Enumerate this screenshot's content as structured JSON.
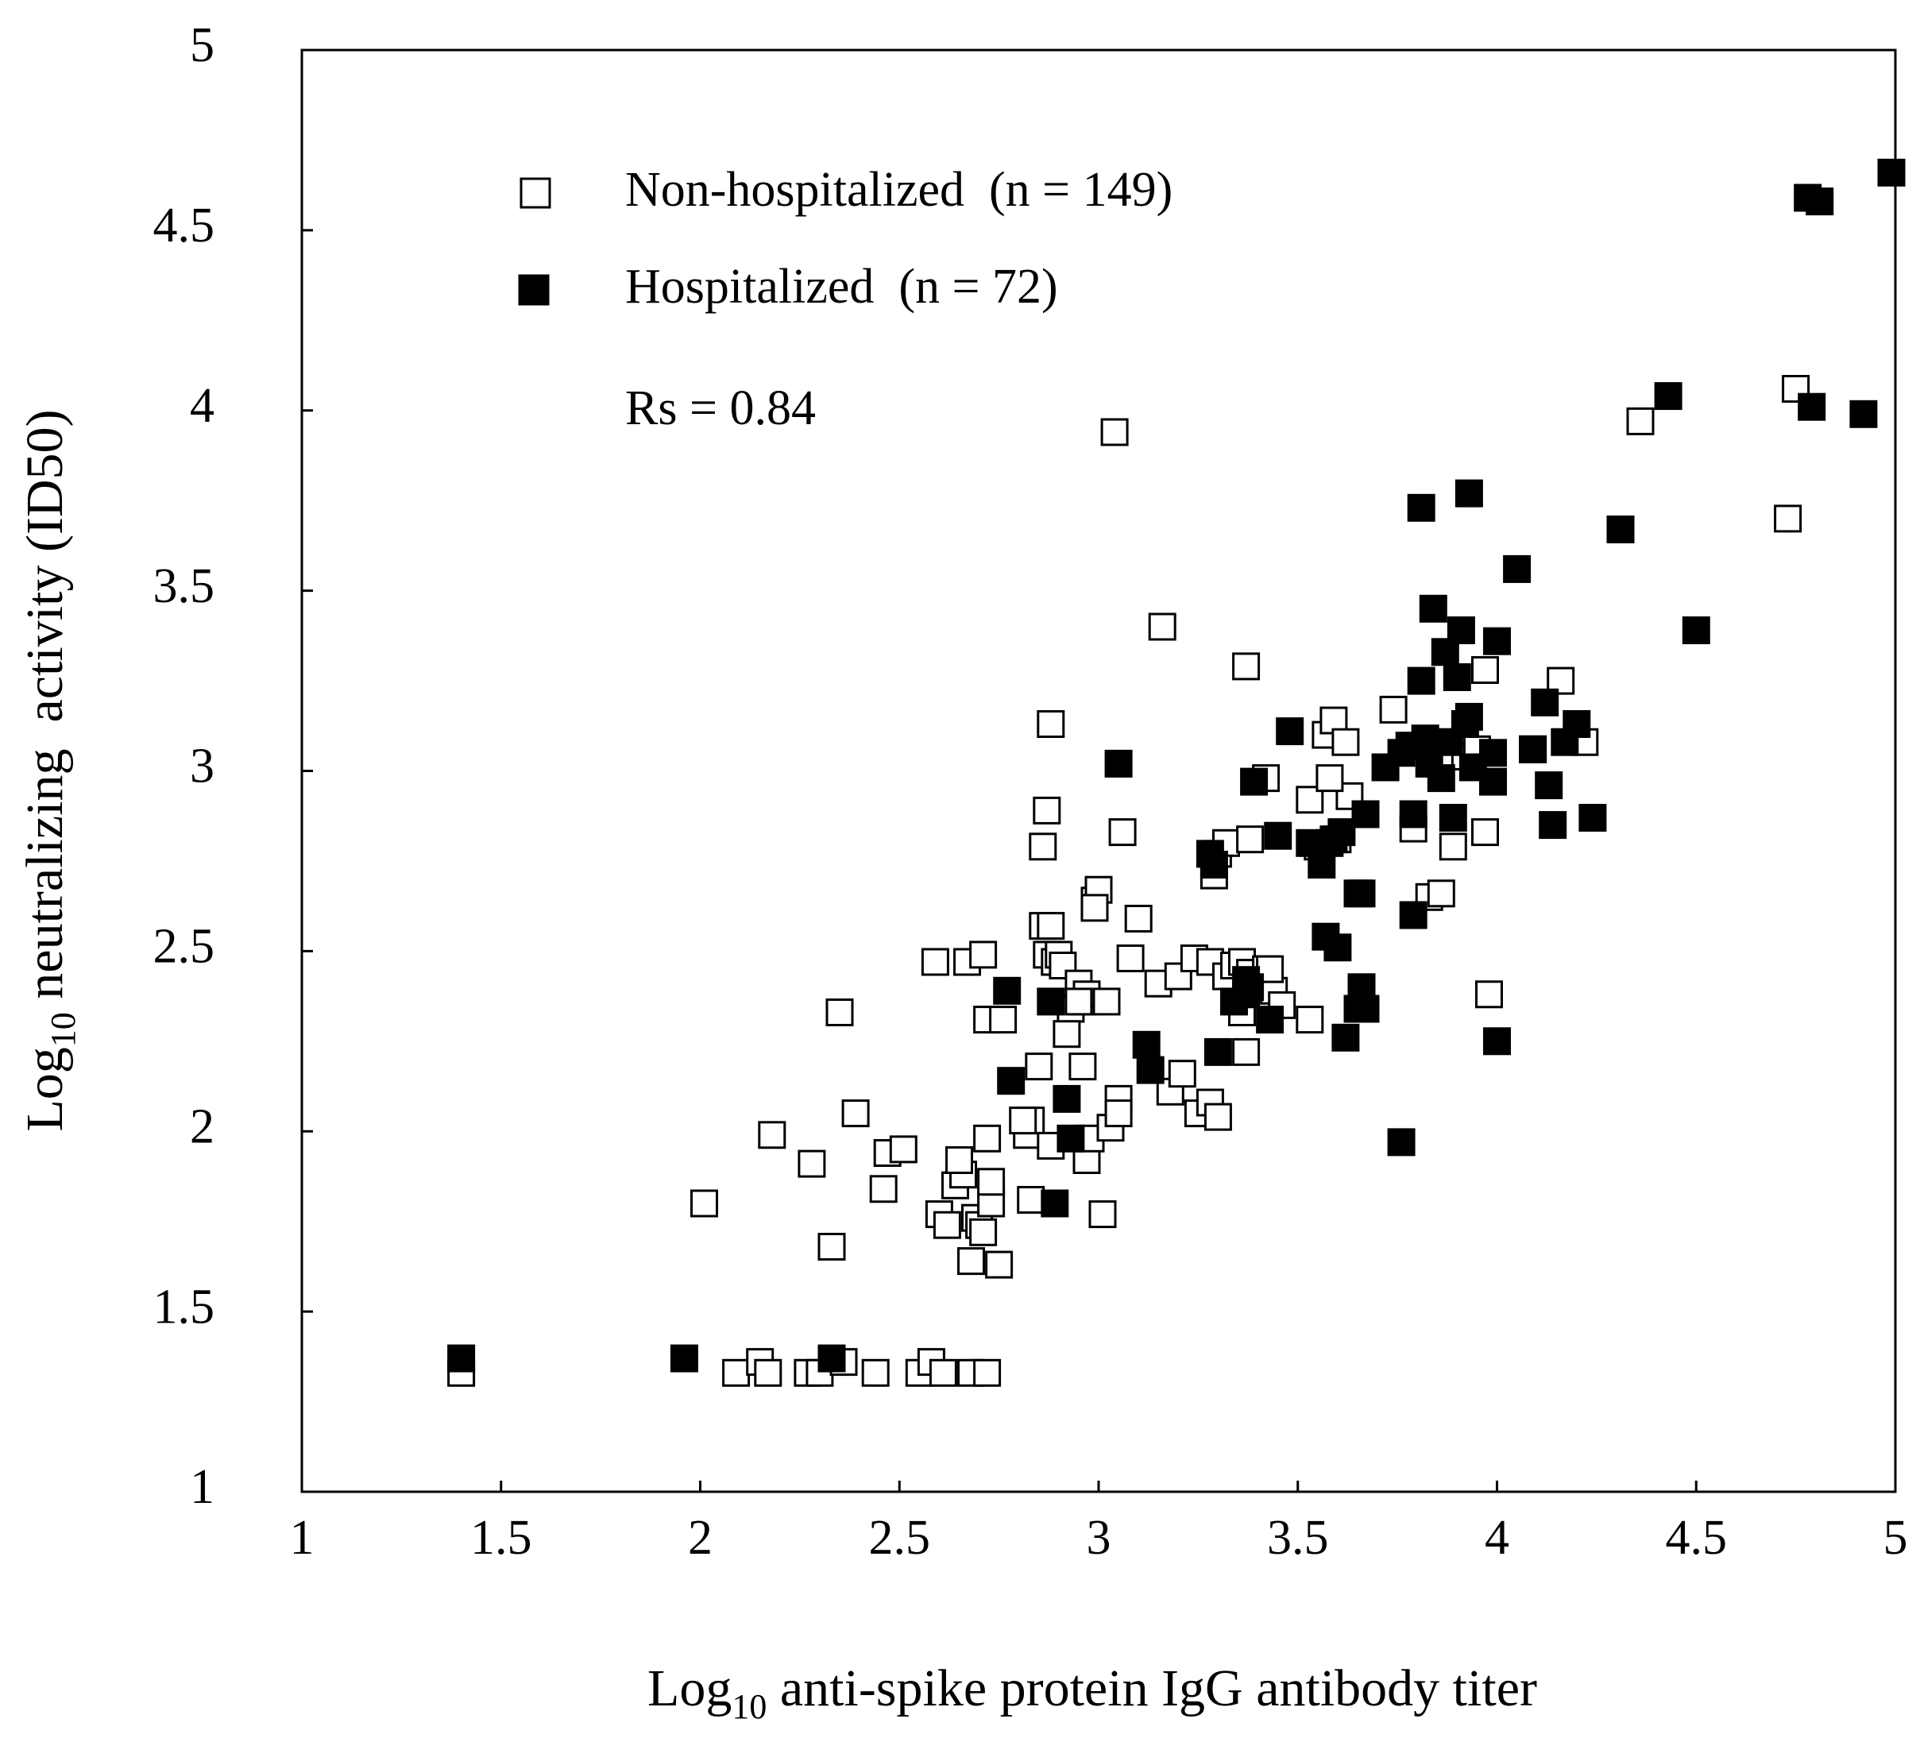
{
  "chart_data": {
    "type": "scatter",
    "title": "",
    "xlabel": {
      "prefix": "Log",
      "subscript": "10",
      "rest": " anti-spike protein IgG antibody titer"
    },
    "ylabel": {
      "prefix": "Log",
      "subscript": "10",
      "rest": " neutralizing  activity (ID50)"
    },
    "xlim": [
      1,
      5
    ],
    "ylim": [
      1,
      5
    ],
    "xticks": [
      1,
      1.5,
      2,
      2.5,
      3,
      3.5,
      4,
      4.5,
      5
    ],
    "yticks": [
      1,
      1.5,
      2,
      2.5,
      3,
      3.5,
      4,
      4.5,
      5
    ],
    "xtick_labels": [
      "1",
      "1.5",
      "2",
      "2.5",
      "3",
      "3.5",
      "4",
      "4.5",
      "5"
    ],
    "ytick_labels": [
      "1",
      "1.5",
      "2",
      "2.5",
      "3",
      "3.5",
      "4",
      "4.5",
      "5"
    ],
    "grid": false,
    "legend_position": "top-left",
    "annotation": "Rs = 0.84",
    "series": [
      {
        "name": "Non-hospitalized  (n = 149)",
        "marker": "open-square",
        "color": "#000000",
        "x": [
          1.4,
          2.09,
          2.15,
          2.17,
          2.27,
          2.3,
          2.36,
          2.44,
          2.55,
          2.58,
          2.61,
          2.68,
          2.72,
          2.01,
          2.18,
          2.28,
          2.33,
          2.35,
          2.39,
          2.46,
          2.47,
          2.51,
          2.6,
          2.62,
          2.64,
          2.66,
          2.68,
          2.69,
          2.7,
          2.71,
          2.73,
          2.73,
          2.75,
          2.65,
          2.59,
          2.67,
          2.71,
          2.72,
          2.72,
          2.76,
          2.82,
          2.83,
          2.85,
          2.86,
          2.87,
          2.88,
          2.89,
          2.9,
          2.91,
          2.93,
          2.95,
          2.96,
          2.97,
          2.99,
          3.0,
          3.02,
          3.05,
          3.08,
          3.1,
          2.81,
          2.83,
          2.88,
          2.92,
          2.95,
          2.96,
          2.97,
          2.98,
          3.01,
          3.03,
          3.05,
          3.18,
          3.21,
          3.25,
          3.28,
          3.3,
          2.86,
          2.87,
          2.88,
          2.99,
          3.06,
          3.04,
          3.16,
          3.37,
          3.29,
          3.3,
          3.32,
          3.38,
          3.42,
          3.15,
          3.2,
          3.24,
          3.28,
          3.32,
          3.34,
          3.36,
          3.38,
          3.4,
          3.42,
          3.44,
          3.46,
          3.53,
          3.37,
          3.36,
          3.43,
          3.53,
          3.57,
          3.59,
          3.62,
          3.63,
          3.58,
          3.55,
          3.6,
          3.74,
          3.79,
          3.83,
          3.86,
          3.89,
          3.92,
          3.95,
          3.97,
          3.97,
          4.16,
          4.22,
          3.98,
          4.36,
          4.73,
          4.75
        ],
        "y": [
          1.33,
          1.33,
          1.36,
          1.33,
          1.33,
          1.33,
          1.36,
          1.33,
          1.33,
          1.36,
          1.33,
          1.33,
          1.33,
          1.8,
          1.99,
          1.91,
          1.68,
          2.33,
          2.05,
          1.84,
          1.94,
          1.95,
          1.77,
          1.74,
          1.85,
          1.88,
          1.64,
          1.76,
          1.74,
          1.72,
          1.8,
          1.86,
          1.63,
          1.92,
          2.47,
          2.47,
          2.49,
          2.31,
          1.98,
          2.31,
          1.99,
          2.03,
          2.18,
          2.57,
          2.49,
          2.57,
          2.47,
          2.49,
          2.46,
          2.34,
          2.41,
          2.36,
          2.38,
          2.64,
          2.67,
          2.36,
          2.09,
          2.48,
          2.59,
          2.03,
          1.81,
          1.96,
          2.27,
          2.36,
          2.18,
          1.92,
          1.98,
          1.77,
          2.01,
          2.05,
          2.11,
          2.16,
          2.05,
          2.08,
          2.04,
          2.79,
          2.89,
          3.13,
          2.62,
          2.83,
          3.94,
          3.4,
          3.29,
          2.71,
          2.77,
          2.8,
          2.81,
          2.98,
          2.41,
          2.43,
          2.48,
          2.47,
          2.43,
          2.46,
          2.47,
          2.44,
          2.4,
          2.45,
          2.39,
          2.35,
          2.31,
          2.22,
          2.33,
          2.45,
          2.92,
          3.1,
          3.14,
          3.08,
          2.93,
          2.98,
          2.79,
          2.81,
          3.17,
          2.84,
          2.65,
          2.66,
          2.79,
          3.04,
          3.06,
          2.83,
          3.28,
          3.25,
          3.08,
          2.38,
          3.97,
          3.7,
          4.06
        ]
      },
      {
        "name": "Hospitalized  (n = 72)",
        "marker": "filled-square",
        "color": "#000000",
        "x": [
          1.4,
          1.96,
          2.33,
          2.77,
          2.78,
          2.88,
          2.89,
          2.92,
          2.93,
          3.12,
          3.13,
          3.05,
          3.3,
          3.28,
          3.29,
          3.34,
          3.37,
          3.37,
          3.39,
          3.43,
          3.38,
          3.45,
          3.48,
          3.53,
          3.56,
          3.58,
          3.59,
          3.61,
          3.65,
          3.66,
          3.67,
          3.57,
          3.6,
          3.62,
          3.65,
          3.66,
          3.67,
          3.72,
          3.76,
          3.78,
          3.79,
          3.81,
          3.82,
          3.83,
          3.86,
          3.87,
          3.88,
          3.89,
          3.9,
          3.91,
          3.92,
          3.93,
          3.94,
          3.99,
          3.99,
          4.0,
          4.0,
          4.09,
          4.09,
          4.12,
          4.13,
          4.14,
          4.17,
          4.2,
          4.24,
          3.76,
          3.79,
          3.81,
          3.84,
          3.93,
          4.05,
          4.31,
          4.5,
          4.43,
          4.78,
          4.79,
          4.81,
          4.99,
          4.92
        ],
        "y": [
          1.37,
          1.37,
          1.37,
          2.39,
          2.14,
          2.36,
          1.8,
          2.09,
          1.98,
          2.24,
          2.17,
          3.02,
          2.22,
          2.77,
          2.74,
          2.36,
          2.38,
          2.42,
          2.97,
          2.31,
          2.4,
          2.82,
          3.11,
          2.8,
          2.74,
          2.8,
          2.81,
          2.83,
          2.66,
          2.66,
          2.88,
          2.54,
          2.51,
          2.26,
          2.34,
          2.4,
          2.34,
          3.01,
          3.05,
          3.07,
          2.88,
          3.25,
          3.09,
          3.02,
          2.98,
          3.33,
          3.08,
          2.87,
          3.26,
          3.39,
          3.13,
          3.15,
          3.01,
          2.97,
          3.05,
          3.36,
          2.25,
          3.06,
          3.06,
          3.19,
          2.96,
          2.85,
          3.08,
          3.13,
          2.87,
          1.97,
          2.6,
          3.73,
          3.45,
          3.77,
          3.56,
          3.67,
          3.39,
          4.04,
          4.59,
          4.01,
          4.58,
          4.66,
          3.99
        ]
      }
    ]
  }
}
